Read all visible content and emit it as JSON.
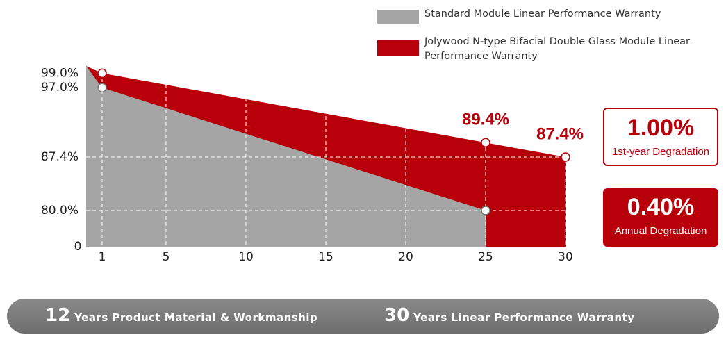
{
  "chart_data": {
    "type": "area",
    "xlim": [
      0,
      30
    ],
    "xticks": [
      1,
      5,
      10,
      15,
      20,
      25,
      30
    ],
    "ylim": [
      75,
      100
    ],
    "yticks": [
      {
        "value": 80,
        "label": "80.0%"
      },
      {
        "value": 87.4,
        "label": "87.4%"
      },
      {
        "value": 97,
        "label": "97.0%"
      },
      {
        "value": 99,
        "label": "99.0%"
      }
    ],
    "axis_origin_label": "0",
    "grid": true,
    "series": [
      {
        "name": "Jolywood N-type Bifacial Double Glass Module Linear Performance Warranty",
        "color": "#b8000a",
        "x": [
          0,
          1,
          25,
          30
        ],
        "values": [
          100,
          99,
          89.4,
          87.4
        ],
        "value_labels": [
          null,
          null,
          "89.4%",
          "87.4%"
        ]
      },
      {
        "name": "Standard Module Linear Performance Warranty",
        "color": "#a5a5a5",
        "x": [
          0,
          1,
          25
        ],
        "values": [
          100,
          97,
          80
        ]
      }
    ]
  },
  "badges": [
    {
      "value": "1.00%",
      "label": "1st-year Degradation",
      "style": "outline"
    },
    {
      "value": "0.40%",
      "label": "Annual Degradation",
      "style": "filled"
    }
  ],
  "banner": [
    {
      "number": "12",
      "text": "Years Product Material & Workmanship"
    },
    {
      "number": "30",
      "text": "Years Linear Performance Warranty"
    }
  ]
}
